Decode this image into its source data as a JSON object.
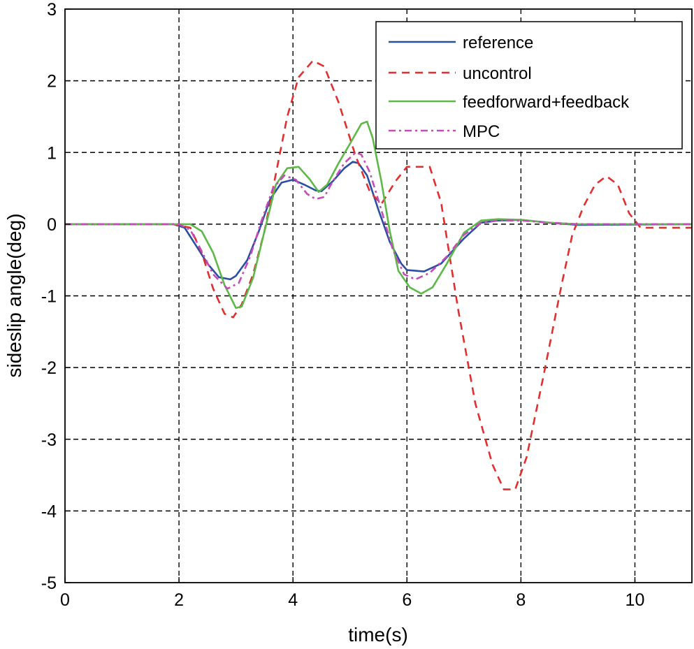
{
  "chart_data": {
    "type": "line",
    "title": "",
    "xlabel": "time(s)",
    "ylabel": "sideslip angle(deg)",
    "xlim": [
      0,
      11
    ],
    "ylim": [
      -5,
      3
    ],
    "x_ticks": [
      0,
      2,
      4,
      6,
      8,
      10
    ],
    "y_ticks": [
      -5,
      -4,
      -3,
      -2,
      -1,
      0,
      1,
      2,
      3
    ],
    "grid": true,
    "legend_position": "top-right",
    "series": [
      {
        "name": "reference",
        "color": "#2b4ea2",
        "style": "solid",
        "points": [
          [
            0,
            0
          ],
          [
            1.9,
            0
          ],
          [
            2.1,
            -0.05
          ],
          [
            2.3,
            -0.3
          ],
          [
            2.5,
            -0.55
          ],
          [
            2.7,
            -0.74
          ],
          [
            2.9,
            -0.77
          ],
          [
            3.0,
            -0.72
          ],
          [
            3.2,
            -0.5
          ],
          [
            3.4,
            -0.1
          ],
          [
            3.6,
            0.35
          ],
          [
            3.8,
            0.58
          ],
          [
            4.0,
            0.62
          ],
          [
            4.2,
            0.55
          ],
          [
            4.4,
            0.47
          ],
          [
            4.5,
            0.46
          ],
          [
            4.7,
            0.6
          ],
          [
            4.9,
            0.78
          ],
          [
            5.05,
            0.87
          ],
          [
            5.15,
            0.85
          ],
          [
            5.3,
            0.68
          ],
          [
            5.5,
            0.2
          ],
          [
            5.7,
            -0.25
          ],
          [
            5.9,
            -0.55
          ],
          [
            6.0,
            -0.64
          ],
          [
            6.3,
            -0.66
          ],
          [
            6.6,
            -0.55
          ],
          [
            7.0,
            -0.2
          ],
          [
            7.3,
            0.02
          ],
          [
            7.6,
            0.05
          ],
          [
            8.0,
            0.06
          ],
          [
            8.5,
            0.02
          ],
          [
            9.0,
            -0.01
          ],
          [
            11,
            0
          ]
        ]
      },
      {
        "name": "uncontrol",
        "color": "#e02f2f",
        "style": "dashed",
        "points": [
          [
            0,
            0
          ],
          [
            1.9,
            0
          ],
          [
            2.2,
            -0.05
          ],
          [
            2.4,
            -0.4
          ],
          [
            2.6,
            -0.9
          ],
          [
            2.8,
            -1.25
          ],
          [
            2.95,
            -1.3
          ],
          [
            3.1,
            -1.12
          ],
          [
            3.3,
            -0.7
          ],
          [
            3.5,
            -0.1
          ],
          [
            3.7,
            0.7
          ],
          [
            3.9,
            1.5
          ],
          [
            4.1,
            2.05
          ],
          [
            4.35,
            2.28
          ],
          [
            4.55,
            2.2
          ],
          [
            4.8,
            1.7
          ],
          [
            5.1,
            0.95
          ],
          [
            5.35,
            0.45
          ],
          [
            5.55,
            0.28
          ],
          [
            5.8,
            0.6
          ],
          [
            6.0,
            0.8
          ],
          [
            6.4,
            0.8
          ],
          [
            6.6,
            0.3
          ],
          [
            6.9,
            -1.2
          ],
          [
            7.2,
            -2.5
          ],
          [
            7.5,
            -3.35
          ],
          [
            7.7,
            -3.7
          ],
          [
            7.9,
            -3.7
          ],
          [
            8.1,
            -3.25
          ],
          [
            8.4,
            -2.1
          ],
          [
            8.7,
            -0.9
          ],
          [
            8.9,
            -0.15
          ],
          [
            9.1,
            0.25
          ],
          [
            9.3,
            0.55
          ],
          [
            9.5,
            0.67
          ],
          [
            9.7,
            0.55
          ],
          [
            9.9,
            0.15
          ],
          [
            10.1,
            -0.05
          ],
          [
            10.5,
            -0.05
          ],
          [
            11,
            -0.05
          ]
        ]
      },
      {
        "name": "feedforward+feedback",
        "color": "#5cb947",
        "style": "solid",
        "points": [
          [
            0,
            0
          ],
          [
            2.2,
            0
          ],
          [
            2.4,
            -0.1
          ],
          [
            2.6,
            -0.4
          ],
          [
            2.8,
            -0.85
          ],
          [
            3.0,
            -1.17
          ],
          [
            3.1,
            -1.15
          ],
          [
            3.3,
            -0.75
          ],
          [
            3.5,
            -0.1
          ],
          [
            3.7,
            0.55
          ],
          [
            3.9,
            0.78
          ],
          [
            4.1,
            0.8
          ],
          [
            4.3,
            0.62
          ],
          [
            4.45,
            0.45
          ],
          [
            4.6,
            0.55
          ],
          [
            4.8,
            0.85
          ],
          [
            5.0,
            1.12
          ],
          [
            5.2,
            1.4
          ],
          [
            5.3,
            1.43
          ],
          [
            5.4,
            1.2
          ],
          [
            5.55,
            0.6
          ],
          [
            5.7,
            -0.1
          ],
          [
            5.85,
            -0.65
          ],
          [
            6.05,
            -0.88
          ],
          [
            6.25,
            -0.97
          ],
          [
            6.45,
            -0.88
          ],
          [
            6.7,
            -0.55
          ],
          [
            7.0,
            -0.12
          ],
          [
            7.3,
            0.05
          ],
          [
            7.6,
            0.07
          ],
          [
            8.0,
            0.06
          ],
          [
            8.5,
            0.02
          ],
          [
            9.0,
            0
          ],
          [
            11,
            0
          ]
        ]
      },
      {
        "name": "MPC",
        "color": "#c44bb8",
        "style": "dashdot",
        "points": [
          [
            0,
            0
          ],
          [
            2.0,
            0
          ],
          [
            2.2,
            -0.08
          ],
          [
            2.4,
            -0.38
          ],
          [
            2.6,
            -0.7
          ],
          [
            2.85,
            -0.9
          ],
          [
            3.05,
            -0.82
          ],
          [
            3.25,
            -0.45
          ],
          [
            3.45,
            0.05
          ],
          [
            3.65,
            0.5
          ],
          [
            3.85,
            0.68
          ],
          [
            4.05,
            0.62
          ],
          [
            4.25,
            0.42
          ],
          [
            4.4,
            0.35
          ],
          [
            4.55,
            0.38
          ],
          [
            4.7,
            0.6
          ],
          [
            4.9,
            0.85
          ],
          [
            5.1,
            1.0
          ],
          [
            5.2,
            0.97
          ],
          [
            5.35,
            0.72
          ],
          [
            5.55,
            0.2
          ],
          [
            5.75,
            -0.35
          ],
          [
            5.95,
            -0.7
          ],
          [
            6.15,
            -0.77
          ],
          [
            6.4,
            -0.68
          ],
          [
            6.7,
            -0.45
          ],
          [
            7.0,
            -0.15
          ],
          [
            7.3,
            0.02
          ],
          [
            7.6,
            0.05
          ],
          [
            8.0,
            0.05
          ],
          [
            8.5,
            0.02
          ],
          [
            9.0,
            0
          ],
          [
            11,
            0
          ]
        ]
      }
    ]
  }
}
